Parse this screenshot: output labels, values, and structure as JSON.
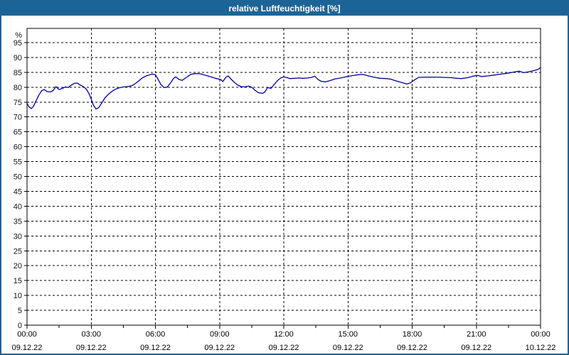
{
  "window": {
    "title": "relative Luftfeuchtigkeit [%]"
  },
  "colors": {
    "titlebar_bg": "#1d6496",
    "frame_border": "#1d6496",
    "title_text": "#ffffff",
    "series_line": "#0000a0",
    "grid": "#000000",
    "axis_border": "#000000",
    "y_tick_text": "#14141e",
    "x_tick_text": "#000000"
  },
  "chart_data": {
    "type": "line",
    "title": "relative Luftfeuchtigkeit [%]",
    "y_unit_label": "%",
    "ylim": [
      0,
      99.8
    ],
    "y_ticks": [
      0,
      5,
      10,
      15,
      20,
      25,
      30,
      35,
      40,
      45,
      50,
      55,
      60,
      65,
      70,
      75,
      80,
      85,
      90,
      95
    ],
    "xlim_hours": [
      0,
      24
    ],
    "x_minor_tick_hours": [
      1.5,
      4.5,
      7.5,
      10.5,
      13.5,
      16.5,
      19.5,
      22.5
    ],
    "grid_style": "dashed",
    "legend": "none",
    "x_ticks": [
      {
        "hour": 0,
        "time": "00:00",
        "date": "09.12.22"
      },
      {
        "hour": 3,
        "time": "03:00",
        "date": "09.12.22"
      },
      {
        "hour": 6,
        "time": "06:00",
        "date": "09.12.22"
      },
      {
        "hour": 9,
        "time": "09:00",
        "date": "09.12.22"
      },
      {
        "hour": 12,
        "time": "12:00",
        "date": "09.12.22"
      },
      {
        "hour": 15,
        "time": "15:00",
        "date": "09.12.22"
      },
      {
        "hour": 18,
        "time": "18:00",
        "date": "09.12.22"
      },
      {
        "hour": 21,
        "time": "21:00",
        "date": "09.12.22"
      },
      {
        "hour": 24,
        "time": "00:00",
        "date": "10.12.22"
      }
    ],
    "series": [
      {
        "name": "relative Luftfeuchtigkeit",
        "unit": "%",
        "color": "#0000a0",
        "points_hour_value": [
          [
            0.0,
            74.6
          ],
          [
            0.08,
            73.5
          ],
          [
            0.2,
            72.8
          ],
          [
            0.3,
            73.6
          ],
          [
            0.42,
            75.4
          ],
          [
            0.55,
            77.3
          ],
          [
            0.68,
            78.8
          ],
          [
            0.8,
            79.2
          ],
          [
            0.95,
            78.5
          ],
          [
            1.1,
            78.4
          ],
          [
            1.22,
            78.9
          ],
          [
            1.35,
            80.2
          ],
          [
            1.5,
            79.2
          ],
          [
            1.65,
            79.6
          ],
          [
            1.8,
            80.1
          ],
          [
            1.92,
            79.9
          ],
          [
            2.05,
            80.6
          ],
          [
            2.2,
            81.3
          ],
          [
            2.35,
            81.4
          ],
          [
            2.5,
            80.7
          ],
          [
            2.65,
            80.1
          ],
          [
            2.78,
            79.3
          ],
          [
            2.9,
            77.8
          ],
          [
            3.0,
            76.0
          ],
          [
            3.1,
            74.0
          ],
          [
            3.22,
            72.7
          ],
          [
            3.35,
            73.1
          ],
          [
            3.5,
            74.8
          ],
          [
            3.65,
            76.5
          ],
          [
            3.8,
            77.6
          ],
          [
            3.95,
            78.5
          ],
          [
            4.1,
            79.2
          ],
          [
            4.3,
            79.8
          ],
          [
            4.5,
            80.1
          ],
          [
            4.7,
            80.2
          ],
          [
            4.85,
            80.4
          ],
          [
            5.0,
            80.9
          ],
          [
            5.2,
            82.0
          ],
          [
            5.4,
            83.2
          ],
          [
            5.6,
            83.9
          ],
          [
            5.85,
            84.4
          ],
          [
            6.0,
            84.2
          ],
          [
            6.1,
            83.0
          ],
          [
            6.25,
            81.0
          ],
          [
            6.4,
            79.9
          ],
          [
            6.55,
            80.0
          ],
          [
            6.7,
            81.4
          ],
          [
            6.85,
            83.0
          ],
          [
            6.95,
            83.5
          ],
          [
            7.1,
            82.6
          ],
          [
            7.25,
            82.3
          ],
          [
            7.45,
            83.3
          ],
          [
            7.65,
            84.3
          ],
          [
            7.85,
            84.6
          ],
          [
            8.1,
            84.5
          ],
          [
            8.35,
            84.0
          ],
          [
            8.6,
            83.5
          ],
          [
            8.85,
            82.9
          ],
          [
            9.05,
            82.6
          ],
          [
            9.15,
            81.9
          ],
          [
            9.3,
            83.4
          ],
          [
            9.4,
            83.8
          ],
          [
            9.55,
            82.6
          ],
          [
            9.7,
            81.6
          ],
          [
            9.85,
            80.7
          ],
          [
            10.0,
            80.2
          ],
          [
            10.2,
            80.1
          ],
          [
            10.35,
            80.4
          ],
          [
            10.5,
            80.0
          ],
          [
            10.65,
            79.0
          ],
          [
            10.8,
            78.2
          ],
          [
            11.0,
            77.9
          ],
          [
            11.1,
            78.3
          ],
          [
            11.25,
            79.9
          ],
          [
            11.4,
            79.6
          ],
          [
            11.55,
            80.9
          ],
          [
            11.7,
            82.2
          ],
          [
            11.85,
            83.1
          ],
          [
            12.0,
            83.5
          ],
          [
            12.15,
            83.2
          ],
          [
            12.3,
            82.9
          ],
          [
            12.5,
            83.0
          ],
          [
            12.7,
            83.1
          ],
          [
            12.9,
            83.0
          ],
          [
            13.1,
            83.1
          ],
          [
            13.3,
            83.3
          ],
          [
            13.45,
            83.7
          ],
          [
            13.6,
            82.6
          ],
          [
            13.75,
            82.0
          ],
          [
            13.95,
            81.8
          ],
          [
            14.15,
            82.2
          ],
          [
            14.4,
            82.8
          ],
          [
            14.65,
            83.1
          ],
          [
            14.9,
            83.5
          ],
          [
            15.2,
            83.9
          ],
          [
            15.5,
            84.2
          ],
          [
            15.7,
            84.3
          ],
          [
            15.95,
            83.8
          ],
          [
            16.2,
            83.4
          ],
          [
            16.5,
            83.0
          ],
          [
            16.8,
            82.9
          ],
          [
            17.0,
            82.7
          ],
          [
            17.25,
            82.1
          ],
          [
            17.5,
            81.6
          ],
          [
            17.75,
            81.1
          ],
          [
            17.9,
            81.4
          ],
          [
            18.1,
            82.4
          ],
          [
            18.3,
            83.3
          ],
          [
            18.6,
            83.4
          ],
          [
            18.9,
            83.4
          ],
          [
            19.2,
            83.4
          ],
          [
            19.5,
            83.3
          ],
          [
            19.8,
            83.2
          ],
          [
            20.1,
            83.0
          ],
          [
            20.3,
            82.9
          ],
          [
            20.6,
            83.2
          ],
          [
            20.85,
            83.7
          ],
          [
            21.05,
            84.0
          ],
          [
            21.25,
            83.6
          ],
          [
            21.55,
            83.8
          ],
          [
            21.85,
            84.1
          ],
          [
            22.15,
            84.4
          ],
          [
            22.45,
            84.7
          ],
          [
            22.75,
            85.1
          ],
          [
            23.0,
            85.4
          ],
          [
            23.2,
            84.9
          ],
          [
            23.45,
            85.2
          ],
          [
            23.65,
            85.5
          ],
          [
            23.85,
            85.9
          ],
          [
            23.95,
            86.3
          ],
          [
            24.0,
            86.7
          ]
        ]
      }
    ]
  }
}
